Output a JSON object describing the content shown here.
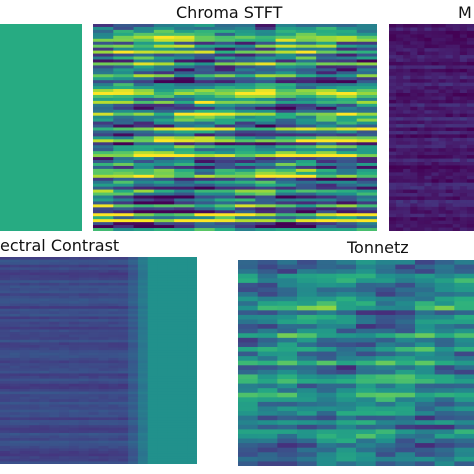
{
  "colormap": "viridis",
  "colors": {
    "viridis_low": "#440154",
    "viridis_mid": "#21918c",
    "viridis_high": "#fde725",
    "background": "#ffffff"
  },
  "chart_data": [
    {
      "type": "heatmap",
      "title": "",
      "description": "uniform field near upper-middle of colormap",
      "base_value": 0.62,
      "row_jitter": 0.0
    },
    {
      "type": "heatmap",
      "title": "Chroma STFT",
      "description": "high-contrast horizontal banding across full colormap range",
      "base_value": 0.55,
      "row_jitter": 0.45
    },
    {
      "type": "heatmap",
      "title": "M",
      "description": "dark field with faint vertical structure",
      "base_value": 0.08,
      "row_jitter": 0.06
    },
    {
      "type": "heatmap",
      "title": "ectral Contrast",
      "description": "dark blue-purple rows with transition to teal at right",
      "base_value": 0.22,
      "row_jitter": 0.05,
      "right_ramp_value": 0.5
    },
    {
      "type": "heatmap",
      "title": "Tonnetz",
      "description": "teal-green field with light and dark blotches",
      "base_value": 0.5,
      "row_jitter": 0.2
    }
  ]
}
